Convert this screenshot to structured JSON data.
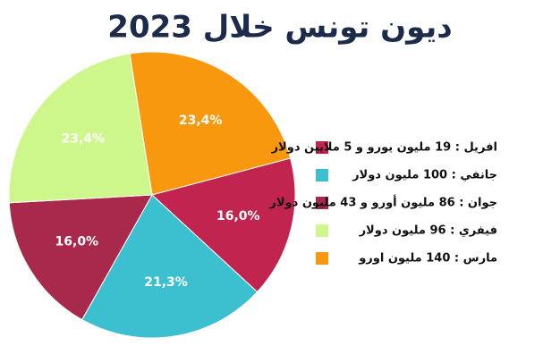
{
  "chart_data": {
    "type": "pie",
    "title": "ديون تونس خلال 2023",
    "labels": [
      "افريل : 19 مليون يورو و 5 ملايين دولار",
      "جانفي : 100 مليون دولار",
      "جوان : 86 مليون أورو و 43 مليون دولار",
      "فيفري : 96 مليون دولار",
      "مارس : 140 مليون اورو"
    ],
    "values": [
      16.0,
      21.3,
      16.0,
      23.4,
      23.4
    ],
    "value_labels": [
      "16,0%",
      "21,3%",
      "16,0%",
      "23,4%",
      "23,4%"
    ],
    "colors": [
      "#c0244f",
      "#3cc0cf",
      "#a8294b",
      "#cdf78b",
      "#f7980f"
    ],
    "legend": "right"
  }
}
